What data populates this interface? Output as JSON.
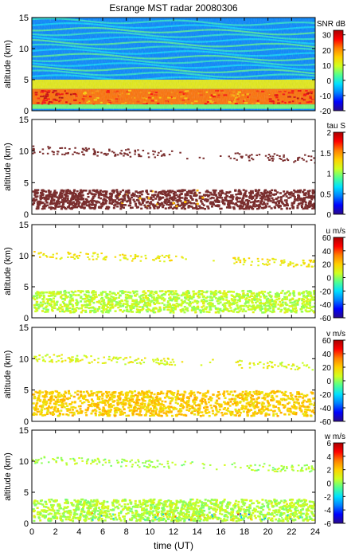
{
  "figure": {
    "title": "Esrange MST radar 20080306",
    "xlabel": "time (UT)",
    "ylabel": "altitude (km)"
  },
  "chart_data": [
    {
      "type": "heatmap",
      "quantity": "SNR",
      "colorbar_label": "SNR dB",
      "clim": [
        -20,
        33
      ],
      "colorbar_ticks": [
        "30",
        "20",
        "10",
        "0",
        "-10",
        "-20"
      ],
      "xlim": [
        0,
        24
      ],
      "ylim": [
        0,
        15
      ],
      "yticks": [
        "15",
        "10",
        "5",
        "0"
      ],
      "layers": [
        {
          "altitude_range_km": [
            0.3,
            1.0
          ],
          "snr_db": 5
        },
        {
          "altitude_range_km": [
            1.0,
            3.5
          ],
          "snr_db": 22
        },
        {
          "altitude_range_km": [
            3.5,
            5.0
          ],
          "snr_db": 12
        },
        {
          "altitude_range_km": [
            5.0,
            15.0
          ],
          "snr_db": -8
        }
      ]
    },
    {
      "type": "heatmap",
      "quantity": "tau",
      "colorbar_label": "tau S",
      "clim": [
        0,
        2
      ],
      "colorbar_ticks": [
        "2",
        "1.5",
        "1",
        "0.5",
        "0"
      ],
      "xlim": [
        0,
        24
      ],
      "ylim": [
        0,
        15
      ],
      "yticks": [
        "15",
        "10",
        "5",
        "0"
      ],
      "layers": [
        {
          "altitude_range_km": [
            1.0,
            4.0
          ],
          "tau_s": 1.9
        },
        {
          "altitude_range_km": [
            9.0,
            10.5
          ],
          "tau_s": 1.9
        }
      ]
    },
    {
      "type": "heatmap",
      "quantity": "u",
      "colorbar_label": "u m/s",
      "clim": [
        -60,
        60
      ],
      "colorbar_ticks": [
        "60",
        "40",
        "20",
        "0",
        "-20",
        "-40",
        "-60"
      ],
      "xlim": [
        0,
        24
      ],
      "ylim": [
        0,
        15
      ],
      "yticks": [
        "15",
        "10",
        "5",
        "0"
      ],
      "layers": [
        {
          "altitude_range_km": [
            1.0,
            4.5
          ],
          "u_ms": 5
        },
        {
          "altitude_range_km": [
            9.0,
            10.5
          ],
          "u_ms": 15
        }
      ]
    },
    {
      "type": "heatmap",
      "quantity": "v",
      "colorbar_label": "v m/s",
      "clim": [
        -60,
        60
      ],
      "colorbar_ticks": [
        "60",
        "40",
        "20",
        "0",
        "-20",
        "-40",
        "-60"
      ],
      "xlim": [
        0,
        24
      ],
      "ylim": [
        0,
        15
      ],
      "yticks": [
        "15",
        "10",
        "5",
        "0"
      ],
      "layers": [
        {
          "altitude_range_km": [
            1.0,
            5.0
          ],
          "v_ms": 20
        },
        {
          "altitude_range_km": [
            9.0,
            10.5
          ],
          "v_ms": 10
        }
      ]
    },
    {
      "type": "heatmap",
      "quantity": "w",
      "colorbar_label": "w m/s",
      "clim": [
        -6,
        6
      ],
      "colorbar_ticks": [
        "6",
        "4",
        "2",
        "0",
        "-2",
        "-4",
        "-6"
      ],
      "xlim": [
        0,
        24
      ],
      "ylim": [
        0,
        15
      ],
      "yticks": [
        "15",
        "10",
        "5",
        "0"
      ],
      "layers": [
        {
          "altitude_range_km": [
            0.5,
            4.0
          ],
          "w_ms": 0.4
        },
        {
          "altitude_range_km": [
            9.0,
            10.5
          ],
          "w_ms": 0.3
        }
      ]
    }
  ],
  "xticks": [
    "0",
    "2",
    "4",
    "6",
    "8",
    "10",
    "12",
    "14",
    "16",
    "18",
    "20",
    "22",
    "24"
  ],
  "colormap_stops": [
    "#2a0a8a",
    "#0000ff",
    "#0080ff",
    "#00e0ff",
    "#50ff90",
    "#d0ff20",
    "#ffd000",
    "#ff8000",
    "#ff0000",
    "#aa0000"
  ],
  "colors": {
    "tau_echo": "#7a2e2e",
    "frame": "#000000"
  }
}
